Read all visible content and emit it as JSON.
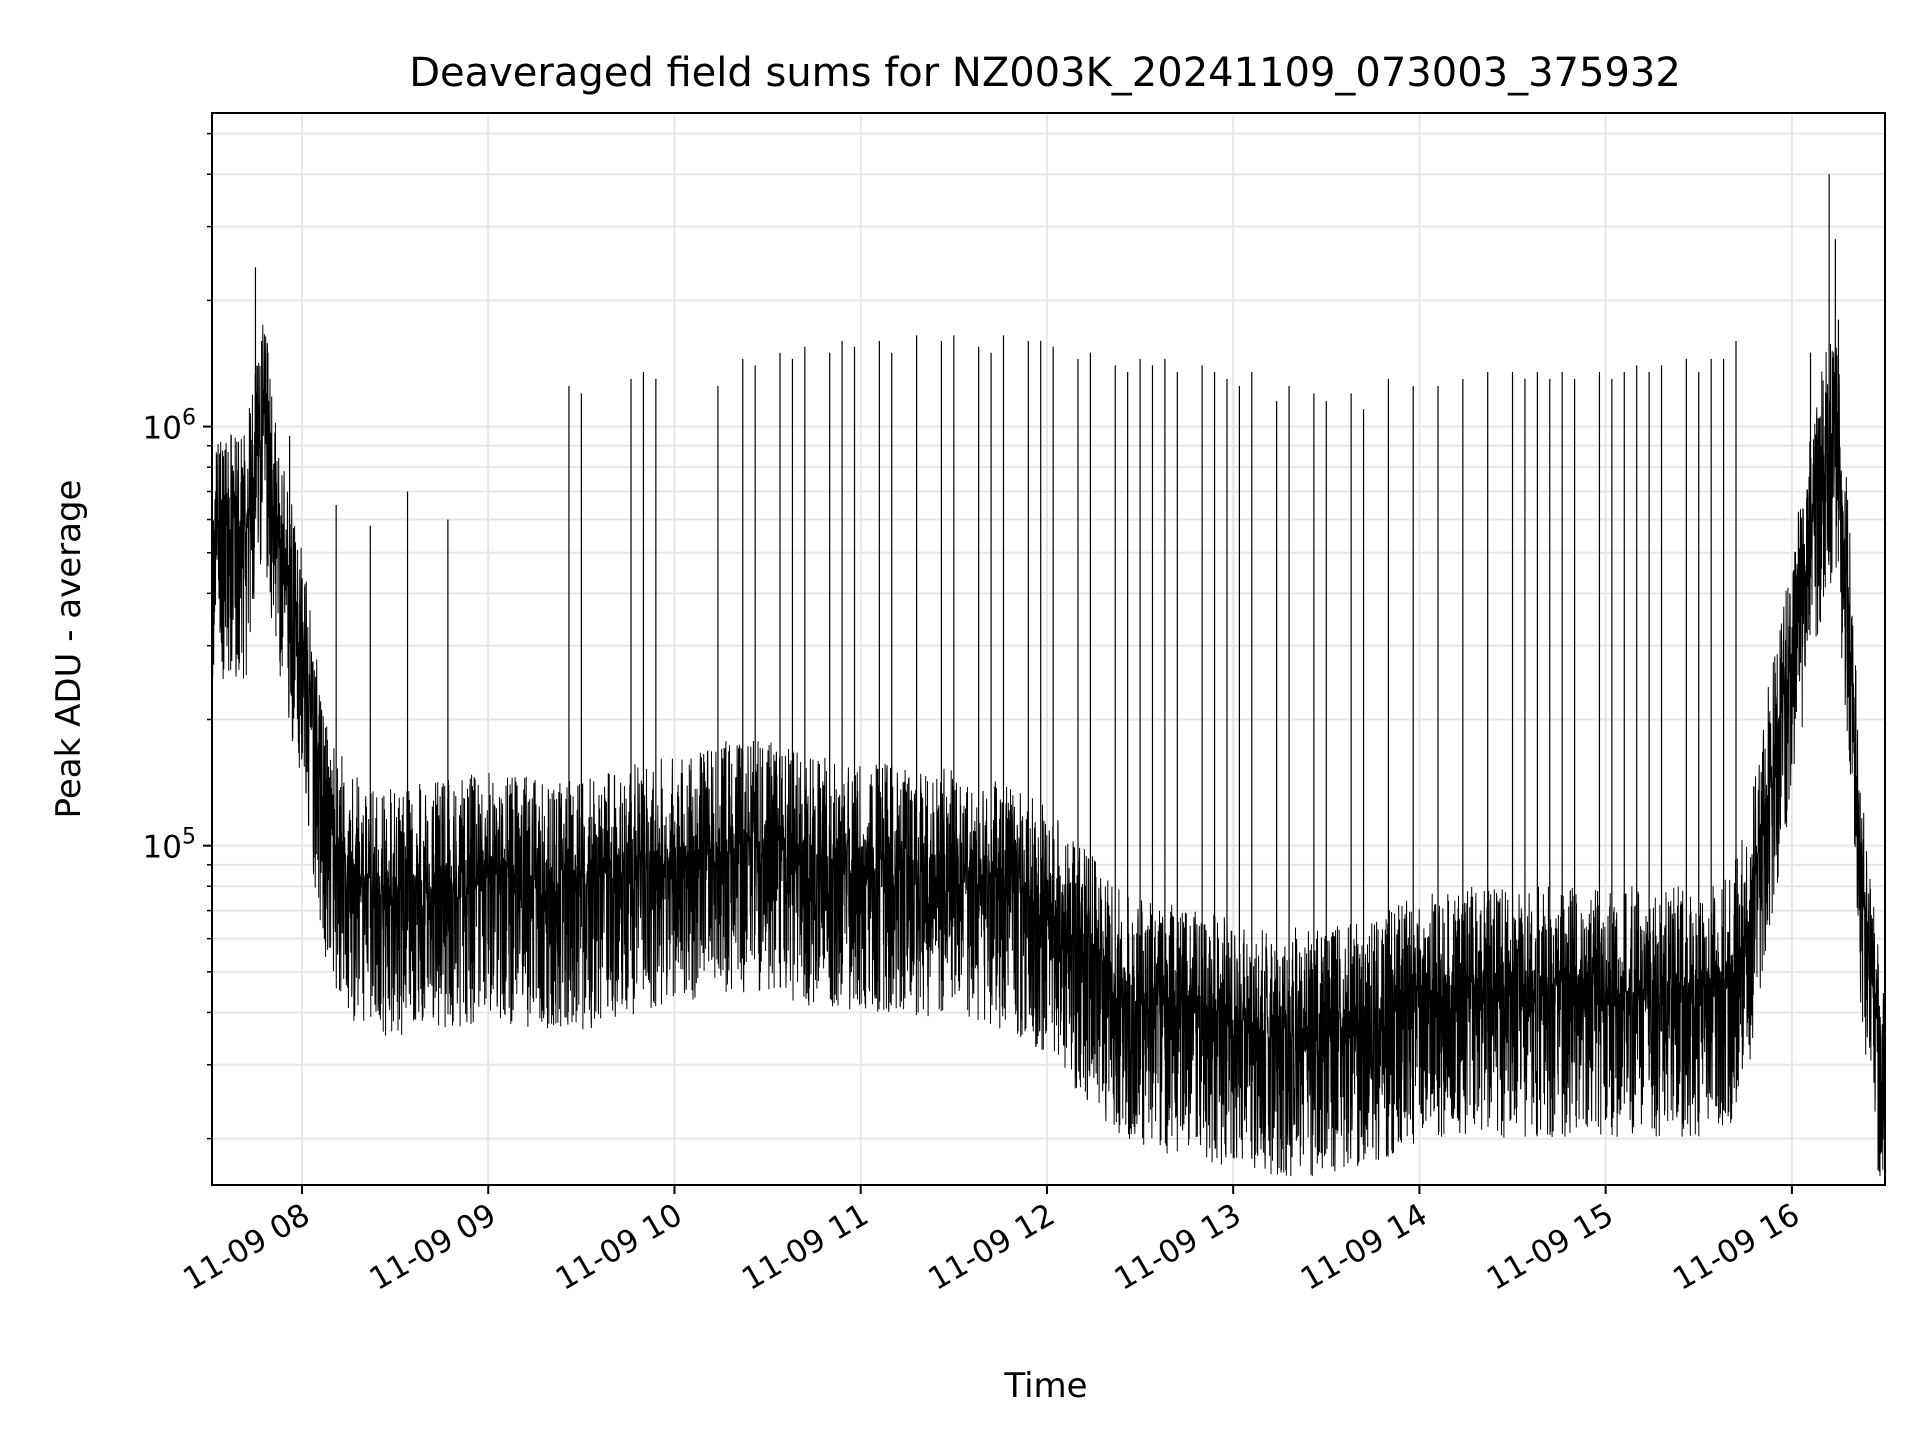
{
  "chart_data": {
    "type": "line",
    "title": "Deaveraged field sums for NZ003K_20241109_073003_375932",
    "xlabel": "Time",
    "ylabel": "Peak ADU - average",
    "yscale": "log",
    "xlim": [
      "2024-11-09 07:31",
      "2024-11-09 16:30"
    ],
    "ylim": [
      15500,
      5600000
    ],
    "grid": true,
    "line_color": "#000000",
    "x_ticks": [
      {
        "label": "11-09 08",
        "value": "2024-11-09 08:00"
      },
      {
        "label": "11-09 09",
        "value": "2024-11-09 09:00"
      },
      {
        "label": "11-09 10",
        "value": "2024-11-09 10:00"
      },
      {
        "label": "11-09 11",
        "value": "2024-11-09 11:00"
      },
      {
        "label": "11-09 12",
        "value": "2024-11-09 12:00"
      },
      {
        "label": "11-09 13",
        "value": "2024-11-09 13:00"
      },
      {
        "label": "11-09 14",
        "value": "2024-11-09 14:00"
      },
      {
        "label": "11-09 15",
        "value": "2024-11-09 15:00"
      },
      {
        "label": "11-09 16",
        "value": "2024-11-09 16:00"
      }
    ],
    "y_ticks": [
      {
        "base": "10",
        "exp": "5",
        "value": 100000
      },
      {
        "base": "10",
        "exp": "6",
        "value": 1000000
      }
    ],
    "series": [
      {
        "baseline": {
          "x": [
            "2024-11-09 07:31",
            "2024-11-09 07:36",
            "2024-11-09 07:42",
            "2024-11-09 07:48",
            "2024-11-09 07:52",
            "2024-11-09 07:56",
            "2024-11-09 08:00",
            "2024-11-09 08:04",
            "2024-11-09 08:08",
            "2024-11-09 08:14",
            "2024-11-09 08:20",
            "2024-11-09 08:30",
            "2024-11-09 08:45",
            "2024-11-09 09:00",
            "2024-11-09 09:15",
            "2024-11-09 09:30",
            "2024-11-09 09:45",
            "2024-11-09 10:00",
            "2024-11-09 10:15",
            "2024-11-09 10:30",
            "2024-11-09 10:45",
            "2024-11-09 11:00",
            "2024-11-09 11:15",
            "2024-11-09 11:30",
            "2024-11-09 11:45",
            "2024-11-09 12:00",
            "2024-11-09 12:10",
            "2024-11-09 12:20",
            "2024-11-09 12:30",
            "2024-11-09 12:45",
            "2024-11-09 13:00",
            "2024-11-09 13:15",
            "2024-11-09 13:30",
            "2024-11-09 13:45",
            "2024-11-09 14:00",
            "2024-11-09 14:15",
            "2024-11-09 14:30",
            "2024-11-09 14:45",
            "2024-11-09 15:00",
            "2024-11-09 15:15",
            "2024-11-09 15:30",
            "2024-11-09 15:40",
            "2024-11-09 15:46",
            "2024-11-09 15:52",
            "2024-11-09 15:58",
            "2024-11-09 16:04",
            "2024-11-09 16:10",
            "2024-11-09 16:14",
            "2024-11-09 16:18",
            "2024-11-09 16:22",
            "2024-11-09 16:26",
            "2024-11-09 16:30"
          ],
          "y": [
            520000,
            540000,
            560000,
            1100000,
            520000,
            400000,
            300000,
            180000,
            110000,
            90000,
            80000,
            78000,
            80000,
            85000,
            82000,
            80000,
            88000,
            92000,
            100000,
            100000,
            92000,
            90000,
            88000,
            86000,
            82000,
            70000,
            58000,
            48000,
            42000,
            40000,
            38000,
            36000,
            36000,
            38000,
            44000,
            45000,
            45000,
            45000,
            45000,
            45000,
            45000,
            48000,
            65000,
            130000,
            230000,
            450000,
            800000,
            1000000,
            400000,
            95000,
            42000,
            30000
          ]
        },
        "spikes": {
          "x": [
            "2024-11-09 07:45",
            "2024-11-09 07:47",
            "2024-11-09 07:49",
            "2024-11-09 07:56",
            "2024-11-09 08:11",
            "2024-11-09 08:22",
            "2024-11-09 08:34",
            "2024-11-09 08:47",
            "2024-11-09 09:26",
            "2024-11-09 09:30",
            "2024-11-09 09:46",
            "2024-11-09 09:50",
            "2024-11-09 09:54",
            "2024-11-09 10:14",
            "2024-11-09 10:22",
            "2024-11-09 10:26",
            "2024-11-09 10:34",
            "2024-11-09 10:38",
            "2024-11-09 10:42",
            "2024-11-09 10:50",
            "2024-11-09 10:54",
            "2024-11-09 10:58",
            "2024-11-09 11:06",
            "2024-11-09 11:10",
            "2024-11-09 11:18",
            "2024-11-09 11:26",
            "2024-11-09 11:30",
            "2024-11-09 11:38",
            "2024-11-09 11:42",
            "2024-11-09 11:46",
            "2024-11-09 11:54",
            "2024-11-09 11:58",
            "2024-11-09 12:02",
            "2024-11-09 12:10",
            "2024-11-09 12:14",
            "2024-11-09 12:22",
            "2024-11-09 12:26",
            "2024-11-09 12:30",
            "2024-11-09 12:34",
            "2024-11-09 12:38",
            "2024-11-09 12:42",
            "2024-11-09 12:50",
            "2024-11-09 12:54",
            "2024-11-09 12:58",
            "2024-11-09 13:02",
            "2024-11-09 13:06",
            "2024-11-09 13:14",
            "2024-11-09 13:18",
            "2024-11-09 13:26",
            "2024-11-09 13:30",
            "2024-11-09 13:38",
            "2024-11-09 13:42",
            "2024-11-09 13:50",
            "2024-11-09 13:58",
            "2024-11-09 14:06",
            "2024-11-09 14:14",
            "2024-11-09 14:22",
            "2024-11-09 14:30",
            "2024-11-09 14:34",
            "2024-11-09 14:38",
            "2024-11-09 14:42",
            "2024-11-09 14:46",
            "2024-11-09 14:50",
            "2024-11-09 14:58",
            "2024-11-09 15:02",
            "2024-11-09 15:06",
            "2024-11-09 15:10",
            "2024-11-09 15:14",
            "2024-11-09 15:18",
            "2024-11-09 15:26",
            "2024-11-09 15:30",
            "2024-11-09 15:34",
            "2024-11-09 15:38",
            "2024-11-09 15:42",
            "2024-11-09 16:06",
            "2024-11-09 16:12",
            "2024-11-09 16:14",
            "2024-11-09 16:15"
          ],
          "y": [
            2400000,
            1600000,
            1500000,
            950000,
            650000,
            580000,
            700000,
            600000,
            1250000,
            1200000,
            1300000,
            1350000,
            1300000,
            1250000,
            1450000,
            1400000,
            1500000,
            1450000,
            1550000,
            1500000,
            1600000,
            1550000,
            1600000,
            1500000,
            1650000,
            1600000,
            1650000,
            1550000,
            1500000,
            1650000,
            1600000,
            1600000,
            1550000,
            1450000,
            1500000,
            1400000,
            1350000,
            1450000,
            1400000,
            1450000,
            1350000,
            1400000,
            1350000,
            1300000,
            1250000,
            1350000,
            1150000,
            1250000,
            1200000,
            1150000,
            1200000,
            1100000,
            1300000,
            1250000,
            1250000,
            1300000,
            1350000,
            1350000,
            1300000,
            1350000,
            1300000,
            1350000,
            1300000,
            1350000,
            1300000,
            1350000,
            1400000,
            1350000,
            1400000,
            1450000,
            1350000,
            1450000,
            1450000,
            1600000,
            1500000,
            4000000,
            2800000,
            1800000
          ]
        }
      }
    ]
  }
}
